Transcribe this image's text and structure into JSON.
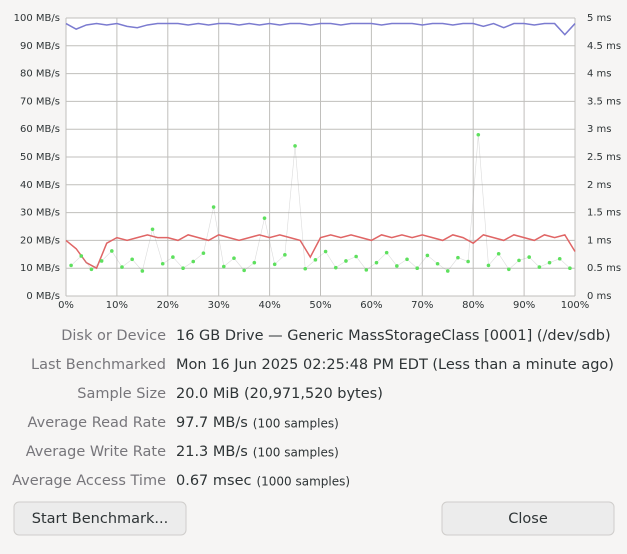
{
  "chart_data": {
    "type": "line",
    "ylim": [
      0,
      100
    ],
    "yticks": [
      {
        "value": 0,
        "label": "0 MB/s"
      },
      {
        "value": 10,
        "label": "10 MB/s"
      },
      {
        "value": 20,
        "label": "20 MB/s"
      },
      {
        "value": 30,
        "label": "30 MB/s"
      },
      {
        "value": 40,
        "label": "40 MB/s"
      },
      {
        "value": 50,
        "label": "50 MB/s"
      },
      {
        "value": 60,
        "label": "60 MB/s"
      },
      {
        "value": 70,
        "label": "70 MB/s"
      },
      {
        "value": 80,
        "label": "80 MB/s"
      },
      {
        "value": 90,
        "label": "90 MB/s"
      },
      {
        "value": 100,
        "label": "100 MB/s"
      }
    ],
    "y2lim": [
      0,
      5
    ],
    "y2ticks": [
      {
        "value": 0,
        "label": "0 ms"
      },
      {
        "value": 0.5,
        "label": "0.5 ms"
      },
      {
        "value": 1,
        "label": "1 ms"
      },
      {
        "value": 1.5,
        "label": "1.5 ms"
      },
      {
        "value": 2,
        "label": "2 ms"
      },
      {
        "value": 2.5,
        "label": "2.5 ms"
      },
      {
        "value": 3,
        "label": "3 ms"
      },
      {
        "value": 3.5,
        "label": "3.5 ms"
      },
      {
        "value": 4,
        "label": "4 ms"
      },
      {
        "value": 4.5,
        "label": "4.5 ms"
      },
      {
        "value": 5,
        "label": "5 ms"
      }
    ],
    "xlim": [
      0,
      100
    ],
    "xticks": [
      {
        "value": 0,
        "label": "0%"
      },
      {
        "value": 10,
        "label": "10%"
      },
      {
        "value": 20,
        "label": "20%"
      },
      {
        "value": 30,
        "label": "30%"
      },
      {
        "value": 40,
        "label": "40%"
      },
      {
        "value": 50,
        "label": "50%"
      },
      {
        "value": 60,
        "label": "60%"
      },
      {
        "value": 70,
        "label": "70%"
      },
      {
        "value": 80,
        "label": "80%"
      },
      {
        "value": 90,
        "label": "90%"
      },
      {
        "value": 100,
        "label": "100%"
      }
    ],
    "grid": true,
    "x": [
      0,
      2,
      4,
      6,
      8,
      10,
      12,
      14,
      16,
      18,
      20,
      22,
      24,
      26,
      28,
      30,
      32,
      34,
      36,
      38,
      40,
      42,
      44,
      46,
      48,
      50,
      52,
      54,
      56,
      58,
      60,
      62,
      64,
      66,
      68,
      70,
      72,
      74,
      76,
      78,
      80,
      82,
      84,
      86,
      88,
      90,
      92,
      94,
      96,
      98,
      100
    ],
    "series": [
      {
        "color": "#7b7bd0",
        "values": [
          98,
          96,
          97.5,
          98,
          97.5,
          98,
          97,
          96.5,
          97.5,
          98,
          98,
          98,
          97.5,
          98,
          97.5,
          98,
          98,
          97.5,
          98,
          97.5,
          98,
          97.5,
          98,
          98,
          97.5,
          98,
          98,
          97.5,
          98,
          98,
          98,
          97.5,
          98,
          98,
          98,
          97.5,
          98,
          98,
          97.5,
          98,
          98,
          97,
          98,
          96.5,
          98,
          98,
          97.5,
          98,
          98,
          94,
          98
        ]
      },
      {
        "color": "#e06565",
        "values": [
          20,
          17,
          12,
          10,
          19,
          21,
          20,
          21,
          22,
          21,
          21,
          20,
          22,
          21,
          20,
          22,
          21,
          20,
          21,
          22,
          21,
          22,
          21,
          20,
          14,
          21,
          22,
          21,
          22,
          21,
          20,
          22,
          21,
          22,
          21,
          22,
          21,
          20,
          22,
          21,
          19,
          22,
          21,
          20,
          22,
          21,
          20,
          22,
          21,
          22,
          16
        ]
      },
      {
        "color": "#5ee05e",
        "axis": "y2",
        "mode": "markers",
        "x": [
          1,
          3,
          5,
          7,
          9,
          11,
          13,
          15,
          17,
          19,
          21,
          23,
          25,
          27,
          29,
          31,
          33,
          35,
          37,
          39,
          41,
          43,
          45,
          47,
          49,
          51,
          53,
          55,
          57,
          59,
          61,
          63,
          65,
          67,
          69,
          71,
          73,
          75,
          77,
          79,
          81,
          83,
          85,
          87,
          89,
          91,
          93,
          95,
          97,
          99
        ],
        "values": [
          0.55,
          0.72,
          0.48,
          0.63,
          0.81,
          0.52,
          0.66,
          0.45,
          1.2,
          0.58,
          0.7,
          0.5,
          0.62,
          0.77,
          1.6,
          0.53,
          0.68,
          0.46,
          0.6,
          1.4,
          0.57,
          0.74,
          2.7,
          0.49,
          0.65,
          0.8,
          0.51,
          0.63,
          0.71,
          0.47,
          0.6,
          0.78,
          0.54,
          0.66,
          0.5,
          0.73,
          0.58,
          0.45,
          0.69,
          0.62,
          2.9,
          0.55,
          0.76,
          0.48,
          0.64,
          0.7,
          0.52,
          0.6,
          0.67,
          0.5
        ]
      }
    ]
  },
  "details": [
    {
      "label": "Disk or Device",
      "value": "16 GB Drive — Generic MassStorageClass [0001] (/dev/sdb)"
    },
    {
      "label": "Last Benchmarked",
      "value": "Mon 16 Jun 2025 02:25:48 PM EDT (Less than a minute ago)"
    },
    {
      "label": "Sample Size",
      "value": "20.0 MiB (20,971,520 bytes)"
    },
    {
      "label": "Average Read Rate",
      "value": "97.7 MB/s",
      "note": "(100 samples)"
    },
    {
      "label": "Average Write Rate",
      "value": "21.3 MB/s",
      "note": "(100 samples)"
    },
    {
      "label": "Average Access Time",
      "value": "0.67 msec",
      "note": "(1000 samples)"
    }
  ],
  "buttons": [
    "Start Benchmark...",
    "Close"
  ]
}
